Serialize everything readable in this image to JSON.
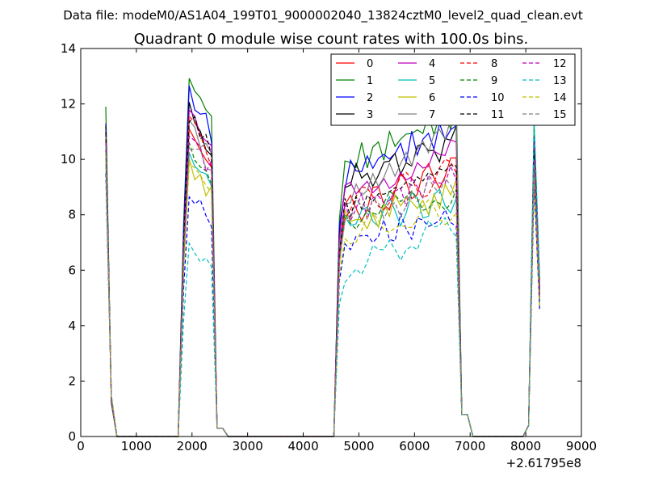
{
  "figure": {
    "suptitle": "Data file: modeM0/AS1A04_199T01_9000002040_13824cztM0_level2_quad_clean.evt",
    "title": "Quadrant 0 module wise count rates with 100.0s bins.",
    "x_offset_label": "+2.61795e8"
  },
  "chart_data": {
    "type": "line",
    "title": "Quadrant 0 module wise count rates with 100.0s bins.",
    "xlabel": "",
    "ylabel": "",
    "xlim": [
      0,
      9000
    ],
    "ylim": [
      0,
      14
    ],
    "x_offset": 261795000,
    "xticks": [
      0,
      1000,
      2000,
      3000,
      4000,
      5000,
      6000,
      7000,
      8000,
      9000
    ],
    "yticks": [
      0,
      2,
      4,
      6,
      8,
      10,
      12,
      14
    ],
    "grid": false,
    "legend": "top-right, 4 columns",
    "segments": [
      {
        "x": [
          450,
          550,
          650,
          750,
          850,
          950,
          1050,
          1150,
          1250,
          1350,
          1450,
          1550,
          1650,
          1750,
          1850,
          1950,
          2050,
          2150,
          2250,
          2350,
          2450,
          2550,
          2650,
          2750,
          2850,
          2950,
          3050,
          3150,
          3250,
          3350,
          3450,
          3550,
          3650,
          3750,
          3850,
          3950,
          4050,
          4150,
          4250,
          4350,
          4450,
          4550,
          4650,
          4750,
          4850,
          4950,
          5050,
          5150,
          5250,
          5350,
          5450,
          5550,
          5650,
          5750,
          5850,
          5950,
          6050,
          6150,
          6250,
          6350,
          6450,
          6550,
          6650,
          6750,
          6850,
          6950,
          7050,
          7150,
          7250,
          7350,
          7450,
          7550,
          7650,
          7750,
          7850,
          7950,
          8050,
          8150,
          8250
        ]
      }
    ],
    "series": [
      {
        "name": "0",
        "color": "#ff0000",
        "dash": "solid",
        "peaks": [
          11.0,
          11.0,
          8.1,
          9.8,
          10.2
        ]
      },
      {
        "name": "1",
        "color": "#008000",
        "dash": "solid",
        "peaks": [
          11.9,
          12.8,
          9.8,
          11.8,
          11.3
        ]
      },
      {
        "name": "2",
        "color": "#0000ff",
        "dash": "solid",
        "peaks": [
          11.3,
          12.3,
          9.5,
          11.2,
          10.8
        ]
      },
      {
        "name": "3",
        "color": "#000000",
        "dash": "solid",
        "peaks": [
          11.0,
          11.6,
          9.1,
          10.8,
          10.4
        ]
      },
      {
        "name": "4",
        "color": "#bf00bf",
        "dash": "solid",
        "peaks": [
          10.9,
          11.5,
          8.9,
          10.4,
          10.6
        ]
      },
      {
        "name": "5",
        "color": "#00bfbf",
        "dash": "solid",
        "peaks": [
          10.2,
          10.2,
          7.8,
          8.6,
          9.5
        ]
      },
      {
        "name": "6",
        "color": "#bfbf00",
        "dash": "solid",
        "peaks": [
          10.0,
          10.0,
          7.7,
          8.9,
          9.2
        ]
      },
      {
        "name": "7",
        "color": "#808080",
        "dash": "solid",
        "peaks": [
          10.8,
          11.2,
          8.6,
          11.7,
          10.3
        ]
      },
      {
        "name": "8",
        "color": "#ff0000",
        "dash": "dashed",
        "peaks": [
          10.7,
          11.3,
          8.3,
          9.6,
          10.1
        ]
      },
      {
        "name": "9",
        "color": "#008000",
        "dash": "dashed",
        "peaks": [
          10.3,
          10.6,
          8.0,
          8.8,
          9.7
        ]
      },
      {
        "name": "10",
        "color": "#0000ff",
        "dash": "dashed",
        "peaks": [
          9.5,
          8.9,
          7.0,
          8.0,
          9.2
        ]
      },
      {
        "name": "11",
        "color": "#000000",
        "dash": "dashed",
        "peaks": [
          11.2,
          11.6,
          8.2,
          9.9,
          10.3
        ]
      },
      {
        "name": "12",
        "color": "#bf00bf",
        "dash": "dashed",
        "peaks": [
          10.6,
          10.9,
          8.1,
          9.5,
          10.0
        ]
      },
      {
        "name": "13",
        "color": "#00bfbf",
        "dash": "dashed",
        "peaks": [
          10.0,
          7.0,
          6.0,
          7.8,
          11.4
        ]
      },
      {
        "name": "14",
        "color": "#bfbf00",
        "dash": "dashed",
        "peaks": [
          10.2,
          10.1,
          7.3,
          8.2,
          9.4
        ]
      },
      {
        "name": "15",
        "color": "#808080",
        "dash": "dashed",
        "peaks": [
          10.5,
          10.8,
          7.9,
          9.1,
          9.8
        ]
      }
    ]
  }
}
